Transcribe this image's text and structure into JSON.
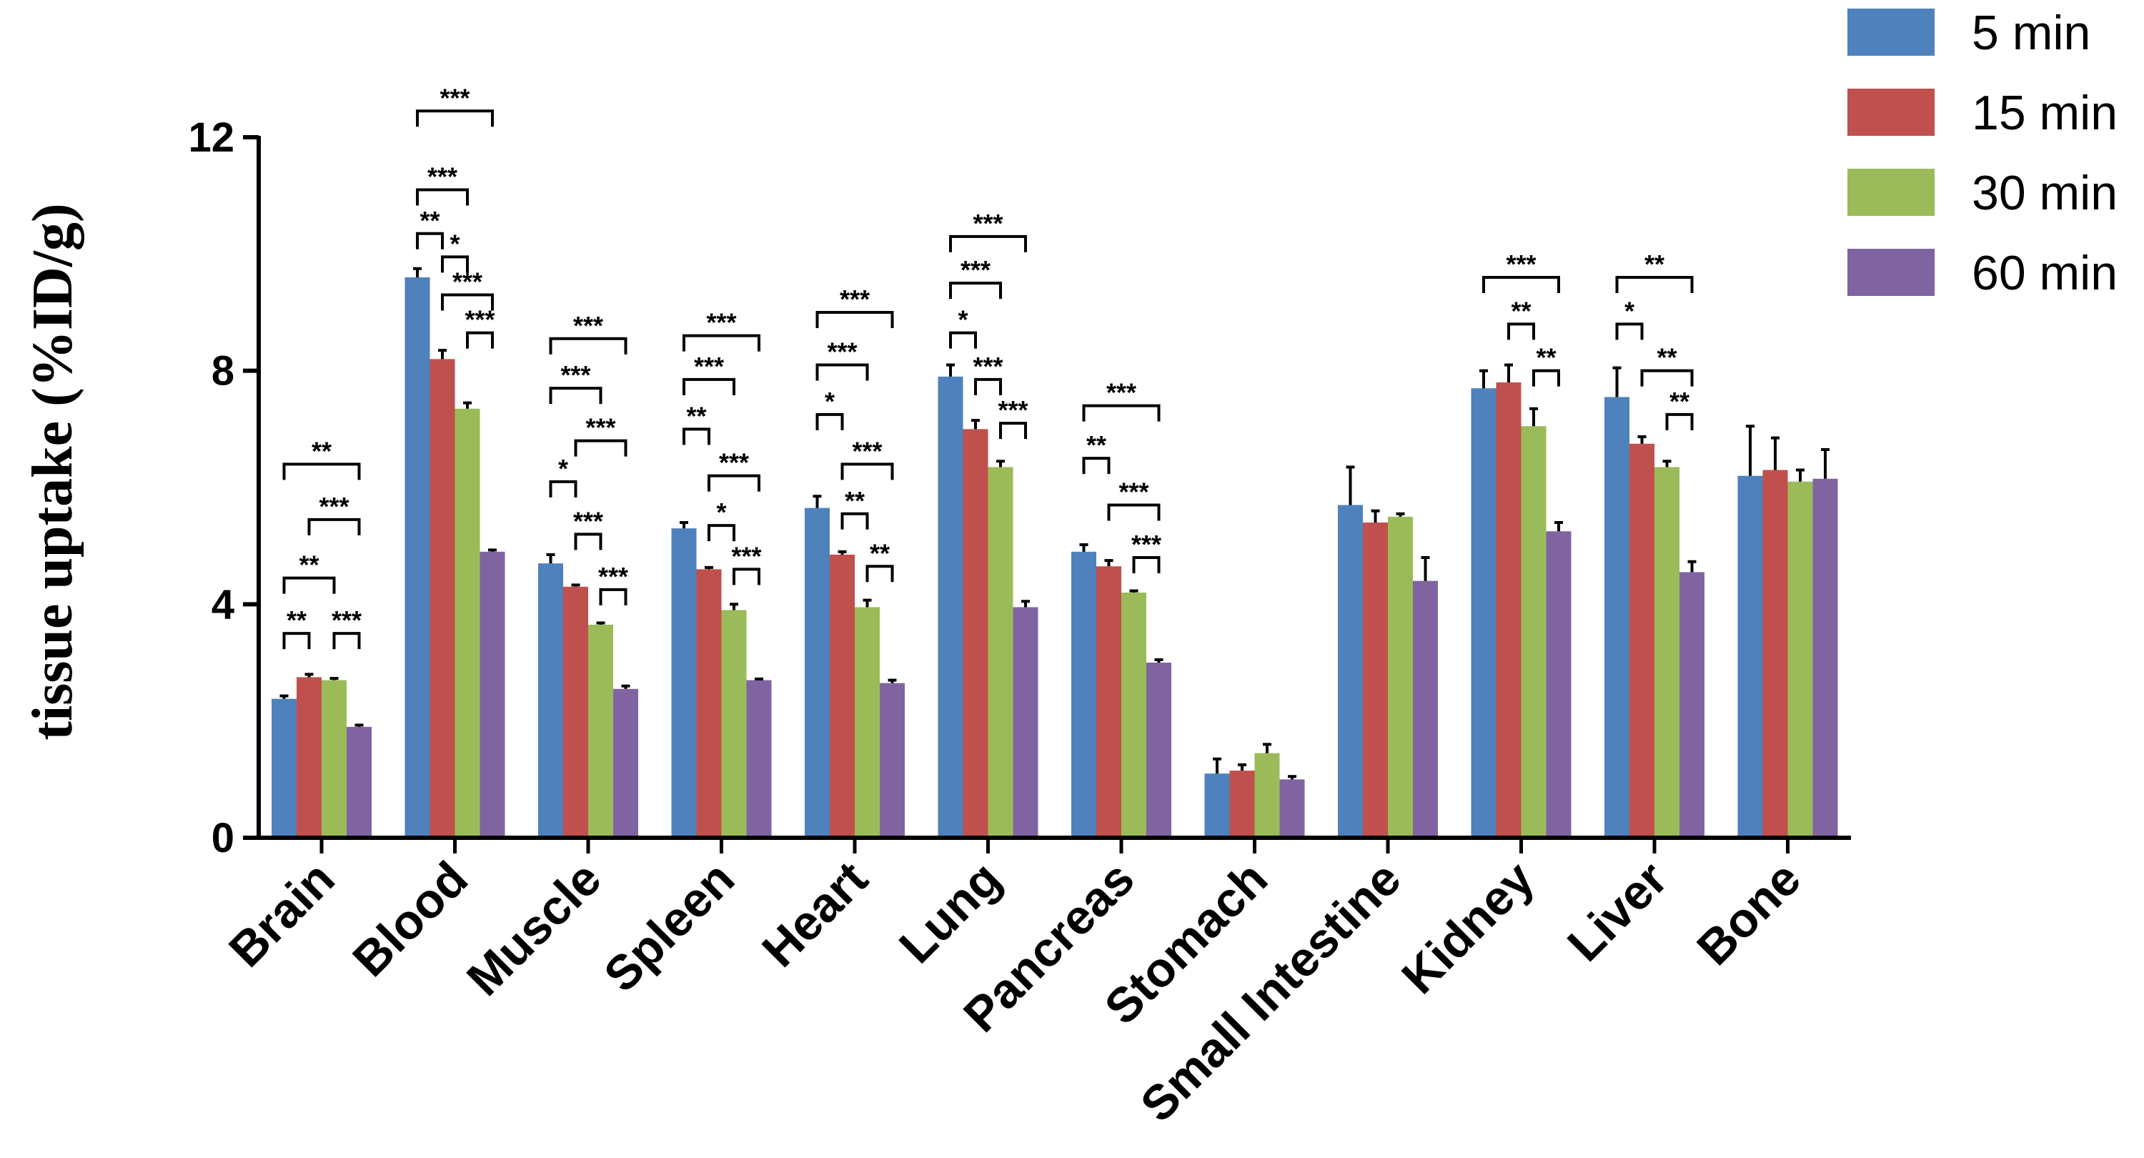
{
  "chart_data": {
    "type": "bar",
    "title": "",
    "xlabel": "",
    "ylabel": "tissue uptake (%ID/g)",
    "ylim": [
      0,
      12
    ],
    "yticks": [
      0,
      4,
      8,
      12
    ],
    "grid": false,
    "legend_position": "top-right",
    "categories": [
      "Brain",
      "Blood",
      "Muscle",
      "Spleen",
      "Heart",
      "Lung",
      "Pancreas",
      "Stomach",
      "Small Intestine",
      "Kidney",
      "Liver",
      "Bone"
    ],
    "series": [
      {
        "name": "5 min",
        "color": "#4f81bd",
        "values": [
          2.38,
          9.6,
          4.7,
          5.3,
          5.65,
          7.9,
          4.9,
          1.1,
          5.7,
          7.7,
          7.55,
          6.2
        ],
        "errors": [
          0.05,
          0.15,
          0.15,
          0.1,
          0.2,
          0.2,
          0.12,
          0.25,
          0.65,
          0.3,
          0.5,
          0.85
        ]
      },
      {
        "name": "15 min",
        "color": "#c0504d",
        "values": [
          2.75,
          8.2,
          4.3,
          4.6,
          4.85,
          7.0,
          4.65,
          1.15,
          5.4,
          7.8,
          6.75,
          6.3
        ],
        "errors": [
          0.05,
          0.15,
          0.03,
          0.03,
          0.05,
          0.15,
          0.1,
          0.1,
          0.2,
          0.3,
          0.12,
          0.55
        ]
      },
      {
        "name": "30 min",
        "color": "#9bbb59",
        "values": [
          2.7,
          7.35,
          3.65,
          3.9,
          3.95,
          6.35,
          4.2,
          1.45,
          5.5,
          7.05,
          6.35,
          6.1
        ],
        "errors": [
          0.03,
          0.1,
          0.03,
          0.1,
          0.12,
          0.1,
          0.03,
          0.15,
          0.05,
          0.3,
          0.1,
          0.2
        ]
      },
      {
        "name": "60 min",
        "color": "#8064a2",
        "values": [
          1.9,
          4.9,
          2.55,
          2.7,
          2.65,
          3.95,
          3.0,
          1.0,
          4.4,
          5.25,
          4.55,
          6.15
        ],
        "errors": [
          0.03,
          0.03,
          0.05,
          0.02,
          0.05,
          0.1,
          0.05,
          0.05,
          0.4,
          0.15,
          0.18,
          0.5
        ]
      }
    ],
    "annotations": [
      {
        "group": 0,
        "from": 0,
        "to": 1,
        "level": 3.5,
        "label": "**"
      },
      {
        "group": 0,
        "from": 2,
        "to": 3,
        "level": 3.5,
        "label": "***"
      },
      {
        "group": 0,
        "from": 0,
        "to": 2,
        "level": 4.45,
        "label": "**"
      },
      {
        "group": 0,
        "from": 1,
        "to": 3,
        "level": 5.45,
        "label": "***"
      },
      {
        "group": 0,
        "from": 0,
        "to": 3,
        "level": 6.4,
        "label": "**"
      },
      {
        "group": 1,
        "from": 0,
        "to": 1,
        "level": 10.35,
        "label": "**"
      },
      {
        "group": 1,
        "from": 1,
        "to": 2,
        "level": 9.95,
        "label": "*"
      },
      {
        "group": 1,
        "from": 0,
        "to": 2,
        "level": 11.1,
        "label": "***"
      },
      {
        "group": 1,
        "from": 1,
        "to": 3,
        "level": 9.3,
        "label": "***"
      },
      {
        "group": 1,
        "from": 2,
        "to": 3,
        "level": 8.65,
        "label": "***"
      },
      {
        "group": 1,
        "from": 0,
        "to": 3,
        "level": 12.45,
        "label": "***"
      },
      {
        "group": 2,
        "from": 0,
        "to": 1,
        "level": 6.1,
        "label": "*"
      },
      {
        "group": 2,
        "from": 1,
        "to": 2,
        "level": 5.2,
        "label": "***"
      },
      {
        "group": 2,
        "from": 2,
        "to": 3,
        "level": 4.25,
        "label": "***"
      },
      {
        "group": 2,
        "from": 0,
        "to": 2,
        "level": 7.7,
        "label": "***"
      },
      {
        "group": 2,
        "from": 1,
        "to": 3,
        "level": 6.8,
        "label": "***"
      },
      {
        "group": 2,
        "from": 0,
        "to": 3,
        "level": 8.55,
        "label": "***"
      },
      {
        "group": 3,
        "from": 0,
        "to": 1,
        "level": 7.0,
        "label": "**"
      },
      {
        "group": 3,
        "from": 1,
        "to": 2,
        "level": 5.35,
        "label": "*"
      },
      {
        "group": 3,
        "from": 2,
        "to": 3,
        "level": 4.6,
        "label": "***"
      },
      {
        "group": 3,
        "from": 0,
        "to": 2,
        "level": 7.85,
        "label": "***"
      },
      {
        "group": 3,
        "from": 1,
        "to": 3,
        "level": 6.2,
        "label": "***"
      },
      {
        "group": 3,
        "from": 0,
        "to": 3,
        "level": 8.6,
        "label": "***"
      },
      {
        "group": 4,
        "from": 0,
        "to": 1,
        "level": 7.25,
        "label": "*"
      },
      {
        "group": 4,
        "from": 1,
        "to": 2,
        "level": 5.55,
        "label": "**"
      },
      {
        "group": 4,
        "from": 2,
        "to": 3,
        "level": 4.65,
        "label": "**"
      },
      {
        "group": 4,
        "from": 0,
        "to": 2,
        "level": 8.1,
        "label": "***"
      },
      {
        "group": 4,
        "from": 1,
        "to": 3,
        "level": 6.4,
        "label": "***"
      },
      {
        "group": 4,
        "from": 0,
        "to": 3,
        "level": 9.0,
        "label": "***"
      },
      {
        "group": 5,
        "from": 0,
        "to": 1,
        "level": 8.65,
        "label": "*"
      },
      {
        "group": 5,
        "from": 1,
        "to": 2,
        "level": 7.85,
        "label": "***"
      },
      {
        "group": 5,
        "from": 2,
        "to": 3,
        "level": 7.1,
        "label": "***"
      },
      {
        "group": 5,
        "from": 0,
        "to": 2,
        "level": 9.5,
        "label": "***"
      },
      {
        "group": 5,
        "from": 0,
        "to": 3,
        "level": 10.3,
        "label": "***"
      },
      {
        "group": 6,
        "from": 0,
        "to": 1,
        "level": 6.5,
        "label": "**"
      },
      {
        "group": 6,
        "from": 1,
        "to": 3,
        "level": 5.7,
        "label": "***"
      },
      {
        "group": 6,
        "from": 2,
        "to": 3,
        "level": 4.8,
        "label": "***"
      },
      {
        "group": 6,
        "from": 0,
        "to": 3,
        "level": 7.4,
        "label": "***"
      },
      {
        "group": 9,
        "from": 1,
        "to": 2,
        "level": 8.8,
        "label": "**"
      },
      {
        "group": 9,
        "from": 2,
        "to": 3,
        "level": 8.0,
        "label": "**"
      },
      {
        "group": 9,
        "from": 0,
        "to": 3,
        "level": 9.6,
        "label": "***"
      },
      {
        "group": 10,
        "from": 0,
        "to": 1,
        "level": 8.8,
        "label": "*"
      },
      {
        "group": 10,
        "from": 1,
        "to": 3,
        "level": 8.0,
        "label": "**"
      },
      {
        "group": 10,
        "from": 2,
        "to": 3,
        "level": 7.25,
        "label": "**"
      },
      {
        "group": 10,
        "from": 0,
        "to": 3,
        "level": 9.6,
        "label": "**"
      }
    ]
  }
}
